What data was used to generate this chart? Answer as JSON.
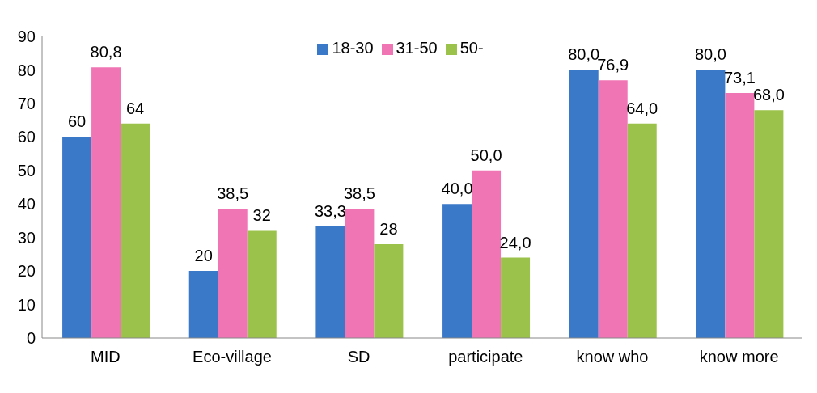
{
  "chart_data": {
    "type": "bar",
    "categories": [
      "MID",
      "Eco-village",
      "SD",
      "participate",
      "know who",
      "know more"
    ],
    "series": [
      {
        "name": "18-30",
        "color": "#3a78c8",
        "values": [
          60,
          20,
          33.3,
          40,
          80,
          80
        ],
        "value_labels": [
          "60",
          "20",
          "33,3",
          "40,0",
          "80,0",
          "80,0"
        ]
      },
      {
        "name": "31-50",
        "color": "#f075b5",
        "values": [
          80.8,
          38.5,
          38.5,
          50,
          76.9,
          73.1
        ],
        "value_labels": [
          "80,8",
          "38,5",
          "38,5",
          "50,0",
          "76,9",
          "73,1"
        ]
      },
      {
        "name": "50-",
        "color": "#9bc24a",
        "values": [
          64,
          32,
          28,
          24,
          64,
          68
        ],
        "value_labels": [
          "64",
          "32",
          "28",
          "24,0",
          "64,0",
          "68,0"
        ]
      }
    ],
    "ylim": [
      0,
      90
    ],
    "yticks": [
      0,
      10,
      20,
      30,
      40,
      50,
      60,
      70,
      80,
      90
    ],
    "legend": "top"
  }
}
